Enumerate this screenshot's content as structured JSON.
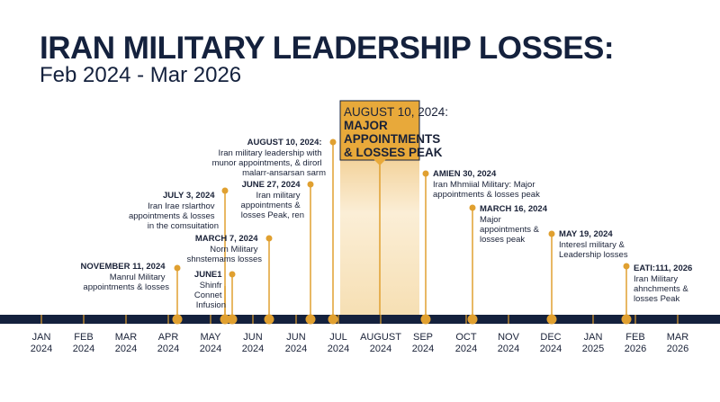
{
  "title": "IRAN MILITARY LEADERSHIP LOSSES:",
  "subtitle": "Feb 2024 - Mar 2026",
  "colors": {
    "navy": "#14213d",
    "gold": "#e0a030",
    "highlight": "#f6dfb3"
  },
  "axis": {
    "ticks": [
      [
        "JAN",
        "2024"
      ],
      [
        "FEB",
        "2024"
      ],
      [
        "MAR",
        "2024"
      ],
      [
        "APR",
        "2024"
      ],
      [
        "MAY",
        "2024"
      ],
      [
        "JUN",
        "2024"
      ],
      [
        "JUN",
        "2024"
      ],
      [
        "JUL",
        "2024"
      ],
      [
        "AUGUST",
        "2024"
      ],
      [
        "SEP",
        "2024"
      ],
      [
        "OCT",
        "2024"
      ],
      [
        "NOV",
        "2024"
      ],
      [
        "DEC",
        "2024"
      ],
      [
        "JAN",
        "2025"
      ],
      [
        "FEB",
        "2026"
      ],
      [
        "MAR",
        "2026"
      ]
    ]
  },
  "callout": {
    "lines": [
      "AUGUST 10, 2024:",
      "MAJOR",
      "APPOINTMENTS",
      "& LOSSES PEAK"
    ]
  },
  "events": [
    {
      "side": "left",
      "date": "NOVEMBER 11, 2024",
      "lines": [
        "Manrul Military",
        "appointments & losses"
      ]
    },
    {
      "side": "left",
      "date": "JULY 3, 2024",
      "lines": [
        "Iran Irae rslarthov",
        "appointments & losses",
        "in the comsuitation"
      ]
    },
    {
      "side": "left",
      "date": "MARCH 7, 2024",
      "lines": [
        "Norn Military",
        "shnstemams losses"
      ]
    },
    {
      "side": "left",
      "date": "JUNE1",
      "lines": [
        "Shinfr",
        "Connet",
        "Infusion"
      ]
    },
    {
      "side": "left",
      "date": "JUNE 27, 2024",
      "lines": [
        "Iran military",
        "appointments &",
        "losses Peak, ren"
      ]
    },
    {
      "side": "left",
      "date": "AUGUST 10, 2024:",
      "lines": [
        "Iran military leadership with",
        "munor appointments, & dirorl",
        "malarr-ansarsan sarm"
      ]
    },
    {
      "side": "right",
      "date": "AMIEN 30, 2024",
      "lines": [
        "Iran Mhmiial Military: Major",
        "appointments & losses peak"
      ]
    },
    {
      "side": "right",
      "date": "MARCH 16, 2024",
      "lines": [
        "Major",
        "appointments &",
        "losses peak"
      ]
    },
    {
      "side": "right",
      "date": "MAY 19, 2024",
      "lines": [
        "Interesl military &",
        "Leadership losses"
      ]
    },
    {
      "side": "right",
      "date": "EATI:111, 2026",
      "lines": [
        "Iran Military",
        "ahnchments &",
        "losses Peak"
      ]
    }
  ]
}
